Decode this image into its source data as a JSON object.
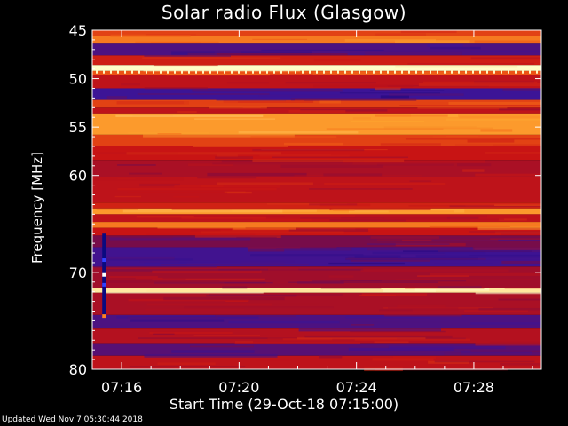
{
  "chart_data": {
    "type": "heatmap",
    "title": "Solar radio Flux (Glasgow)",
    "xlabel": "Start Time (29-Oct-18 07:15:00)",
    "ylabel": "Frequency [MHz]",
    "x_ticks": [
      "07:16",
      "07:20",
      "07:24",
      "07:28"
    ],
    "x_tick_minutes": [
      1,
      5,
      9,
      13
    ],
    "xlim_minutes": [
      0,
      15.3
    ],
    "y_ticks": [
      45,
      50,
      55,
      60,
      70,
      80
    ],
    "ylim": [
      45,
      80
    ],
    "bands": [
      {
        "from": 45.0,
        "to": 45.6,
        "level": 0.55
      },
      {
        "from": 45.6,
        "to": 46.4,
        "level": 0.7
      },
      {
        "from": 46.4,
        "to": 47.6,
        "level": 0.18
      },
      {
        "from": 47.6,
        "to": 48.6,
        "level": 0.45
      },
      {
        "from": 48.6,
        "to": 49.2,
        "level": 1.0
      },
      {
        "from": 49.2,
        "to": 49.6,
        "level": 0.6
      },
      {
        "from": 49.6,
        "to": 51.0,
        "level": 0.4
      },
      {
        "from": 51.0,
        "to": 52.2,
        "level": 0.15
      },
      {
        "from": 52.2,
        "to": 53.0,
        "level": 0.55
      },
      {
        "from": 53.0,
        "to": 53.6,
        "level": 0.4
      },
      {
        "from": 53.6,
        "to": 55.8,
        "level": 0.78
      },
      {
        "from": 55.8,
        "to": 57.0,
        "level": 0.55
      },
      {
        "from": 57.0,
        "to": 58.4,
        "level": 0.42
      },
      {
        "from": 58.4,
        "to": 60.2,
        "level": 0.36
      },
      {
        "from": 60.2,
        "to": 62.8,
        "level": 0.4
      },
      {
        "from": 62.8,
        "to": 63.4,
        "level": 0.46
      },
      {
        "from": 63.4,
        "to": 64.0,
        "level": 0.78
      },
      {
        "from": 64.0,
        "to": 64.8,
        "level": 0.4
      },
      {
        "from": 64.8,
        "to": 65.4,
        "level": 0.7
      },
      {
        "from": 65.4,
        "to": 66.2,
        "level": 0.42
      },
      {
        "from": 66.2,
        "to": 67.4,
        "level": 0.26
      },
      {
        "from": 67.4,
        "to": 69.4,
        "level": 0.16
      },
      {
        "from": 69.4,
        "to": 71.6,
        "level": 0.34
      },
      {
        "from": 71.6,
        "to": 72.1,
        "level": 0.95
      },
      {
        "from": 72.1,
        "to": 74.4,
        "level": 0.36
      },
      {
        "from": 74.4,
        "to": 75.8,
        "level": 0.18
      },
      {
        "from": 75.8,
        "to": 77.4,
        "level": 0.38
      },
      {
        "from": 77.4,
        "to": 78.6,
        "level": 0.2
      },
      {
        "from": 78.6,
        "to": 80.0,
        "level": 0.4
      }
    ],
    "burst_marker": {
      "minute": 0.4,
      "from": 66.0,
      "to": 74.5
    },
    "grid": false,
    "legend": "none"
  },
  "footer": {
    "updated": "Updated Wed Nov  7 05:30:44 2018"
  }
}
